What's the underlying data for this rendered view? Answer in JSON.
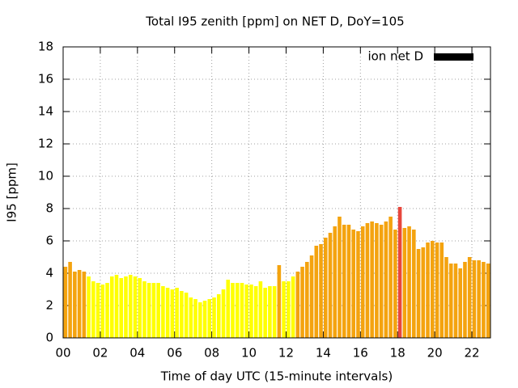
{
  "chart_data": {
    "type": "bar",
    "title": "Total I95 zenith [ppm] on NET D, DoY=105",
    "x_label": "Time of day UTC (15-minute intervals)",
    "y_label": "I95 [ppm]",
    "legend_label": "ion net D",
    "legend_color": "#000000",
    "legend_position": "top-right",
    "x": [
      0,
      0.25,
      0.5,
      0.75,
      1,
      1.25,
      1.5,
      1.75,
      2,
      2.25,
      2.5,
      2.75,
      3,
      3.25,
      3.5,
      3.75,
      4,
      4.25,
      4.5,
      4.75,
      5,
      5.25,
      5.5,
      5.75,
      6,
      6.25,
      6.5,
      6.75,
      7,
      7.25,
      7.5,
      7.75,
      8,
      8.25,
      8.5,
      8.75,
      9,
      9.25,
      9.5,
      9.75,
      10,
      10.25,
      10.5,
      10.75,
      11,
      11.25,
      11.5,
      11.75,
      12,
      12.25,
      12.5,
      12.75,
      13,
      13.25,
      13.5,
      13.75,
      14,
      14.25,
      14.5,
      14.75,
      15,
      15.25,
      15.5,
      15.75,
      16,
      16.25,
      16.5,
      16.75,
      17,
      17.25,
      17.5,
      17.75,
      18,
      18.25,
      18.5,
      18.75,
      19,
      19.25,
      19.5,
      19.75,
      20,
      20.25,
      20.5,
      20.75,
      21,
      21.25,
      21.5,
      21.75,
      22,
      22.25,
      22.5,
      22.75
    ],
    "values": [
      4.4,
      4.7,
      4.1,
      4.2,
      4.1,
      3.8,
      3.5,
      3.4,
      3.3,
      3.4,
      3.8,
      3.9,
      3.7,
      3.8,
      3.9,
      3.8,
      3.7,
      3.5,
      3.4,
      3.4,
      3.4,
      3.2,
      3.1,
      3.0,
      3.1,
      2.9,
      2.8,
      2.5,
      2.4,
      2.2,
      2.3,
      2.4,
      2.5,
      2.7,
      3.0,
      3.6,
      3.4,
      3.4,
      3.4,
      3.3,
      3.3,
      3.2,
      3.5,
      3.1,
      3.2,
      3.2,
      4.5,
      3.5,
      3.5,
      3.8,
      4.1,
      4.4,
      4.7,
      5.1,
      5.7,
      5.8,
      6.2,
      6.5,
      6.9,
      7.5,
      7.0,
      7.0,
      6.7,
      6.6,
      6.9,
      7.1,
      7.2,
      7.1,
      7.0,
      7.2,
      7.5,
      6.7,
      8.1,
      6.8,
      6.9,
      6.7,
      5.5,
      5.6,
      5.9,
      6.0,
      5.9,
      5.9,
      5.0,
      4.6,
      4.6,
      4.3,
      4.7,
      5.0,
      4.8,
      4.8,
      4.7,
      4.6
    ],
    "colors": [
      "#f4a30f",
      "#f4a30f",
      "#f4a30f",
      "#f4a30f",
      "#f4a30f",
      "#ffff00",
      "#ffff00",
      "#ffff00",
      "#ffff00",
      "#ffff00",
      "#ffff00",
      "#ffff00",
      "#ffff00",
      "#ffff00",
      "#ffff00",
      "#ffff00",
      "#ffff00",
      "#ffff00",
      "#ffff00",
      "#ffff00",
      "#ffff00",
      "#ffff00",
      "#ffff00",
      "#ffff00",
      "#ffff00",
      "#ffff00",
      "#ffff00",
      "#ffff00",
      "#ffff00",
      "#ffff00",
      "#ffff00",
      "#ffff00",
      "#ffff00",
      "#ffff00",
      "#ffff00",
      "#ffff00",
      "#ffff00",
      "#ffff00",
      "#ffff00",
      "#ffff00",
      "#ffff00",
      "#ffff00",
      "#ffff00",
      "#ffff00",
      "#ffff00",
      "#ffff00",
      "#f4a30f",
      "#ffff00",
      "#ffff00",
      "#ffff00",
      "#f4a30f",
      "#f4a30f",
      "#f4a30f",
      "#f4a30f",
      "#f4a30f",
      "#f4a30f",
      "#f4a30f",
      "#f4a30f",
      "#f4a30f",
      "#f4a30f",
      "#f4a30f",
      "#f4a30f",
      "#f4a30f",
      "#f4a30f",
      "#f4a30f",
      "#f4a30f",
      "#f4a30f",
      "#f4a30f",
      "#f4a30f",
      "#f4a30f",
      "#f4a30f",
      "#f4a30f",
      "#e8473c",
      "#f4a30f",
      "#f4a30f",
      "#f4a30f",
      "#f4a30f",
      "#f4a30f",
      "#f4a30f",
      "#f4a30f",
      "#f4a30f",
      "#f4a30f",
      "#f4a30f",
      "#f4a30f",
      "#f4a30f",
      "#f4a30f",
      "#f4a30f",
      "#f4a30f",
      "#f4a30f",
      "#f4a30f",
      "#f4a30f",
      "#f4a30f"
    ],
    "bar_width": 0.25,
    "xlim": [
      0,
      23
    ],
    "ylim": [
      0,
      18
    ],
    "xticks": [
      {
        "value": 0,
        "label": "00"
      },
      {
        "value": 2,
        "label": "02"
      },
      {
        "value": 4,
        "label": "04"
      },
      {
        "value": 6,
        "label": "06"
      },
      {
        "value": 8,
        "label": "08"
      },
      {
        "value": 10,
        "label": "10"
      },
      {
        "value": 12,
        "label": "12"
      },
      {
        "value": 14,
        "label": "14"
      },
      {
        "value": 16,
        "label": "16"
      },
      {
        "value": 18,
        "label": "18"
      },
      {
        "value": 20,
        "label": "20"
      },
      {
        "value": 22,
        "label": "22"
      }
    ],
    "yticks": [
      0,
      2,
      4,
      6,
      8,
      10,
      12,
      14,
      16,
      18
    ],
    "grid": true
  }
}
